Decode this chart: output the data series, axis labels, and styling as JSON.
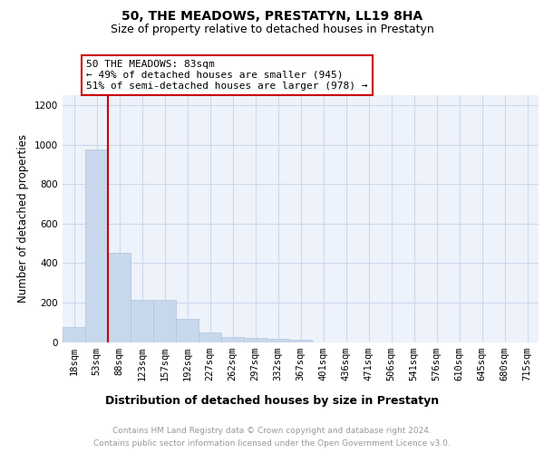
{
  "title": "50, THE MEADOWS, PRESTATYN, LL19 8HA",
  "subtitle": "Size of property relative to detached houses in Prestatyn",
  "xlabel": "Distribution of detached houses by size in Prestatyn",
  "ylabel": "Number of detached properties",
  "footer_line1": "Contains HM Land Registry data © Crown copyright and database right 2024.",
  "footer_line2": "Contains public sector information licensed under the Open Government Licence v3.0.",
  "categories": [
    "18sqm",
    "53sqm",
    "88sqm",
    "123sqm",
    "157sqm",
    "192sqm",
    "227sqm",
    "262sqm",
    "297sqm",
    "332sqm",
    "367sqm",
    "401sqm",
    "436sqm",
    "471sqm",
    "506sqm",
    "541sqm",
    "576sqm",
    "610sqm",
    "645sqm",
    "680sqm",
    "715sqm"
  ],
  "values": [
    75,
    975,
    450,
    215,
    215,
    115,
    50,
    25,
    20,
    15,
    10,
    0,
    0,
    0,
    0,
    0,
    0,
    0,
    0,
    0,
    0
  ],
  "bar_color": "#c8d8ec",
  "bar_edge_color": "#adc4de",
  "red_line_x": 1.5,
  "annotation_text": "50 THE MEADOWS: 83sqm\n← 49% of detached houses are smaller (945)\n51% of semi-detached houses are larger (978) →",
  "annotation_box_color": "#ffffff",
  "annotation_box_edge": "#cc0000",
  "red_line_color": "#cc0000",
  "ylim": [
    0,
    1250
  ],
  "yticks": [
    0,
    200,
    400,
    600,
    800,
    1000,
    1200
  ],
  "grid_color": "#ccd8ec",
  "bg_color": "#eef2fa",
  "title_fontsize": 10,
  "subtitle_fontsize": 9,
  "tick_fontsize": 7.5,
  "ylabel_fontsize": 8.5,
  "xlabel_fontsize": 9
}
